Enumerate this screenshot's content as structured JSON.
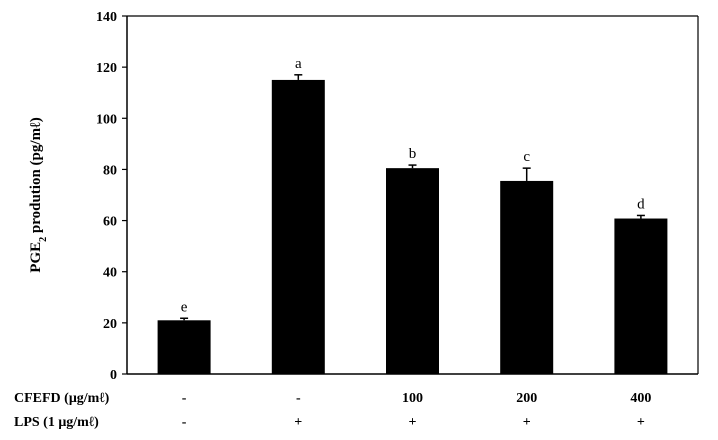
{
  "chart_data": {
    "type": "bar",
    "title": "",
    "ylabel_parts": [
      "PGE",
      "2",
      " prodution (pg/",
      "mℓ",
      ")"
    ],
    "ylim": [
      0,
      140
    ],
    "yticks": [
      "0",
      "20",
      "40",
      "60",
      "80",
      "100",
      "120",
      "140"
    ],
    "grid": false,
    "bar_color": "#000000",
    "values": [
      21,
      115,
      80.5,
      75.5,
      60.8
    ],
    "errors": [
      0.8,
      2.0,
      1.2,
      5.0,
      1.2
    ],
    "significance": [
      "e",
      "a",
      "b",
      "c",
      "d"
    ]
  },
  "treatment_rows": [
    {
      "label": "CFEFD (μg/mℓ)",
      "cells": [
        "-",
        "-",
        "100",
        "200",
        "400"
      ]
    },
    {
      "label": "LPS (1 μg/mℓ)",
      "cells": [
        "-",
        "+",
        "+",
        "+",
        "+"
      ]
    }
  ]
}
